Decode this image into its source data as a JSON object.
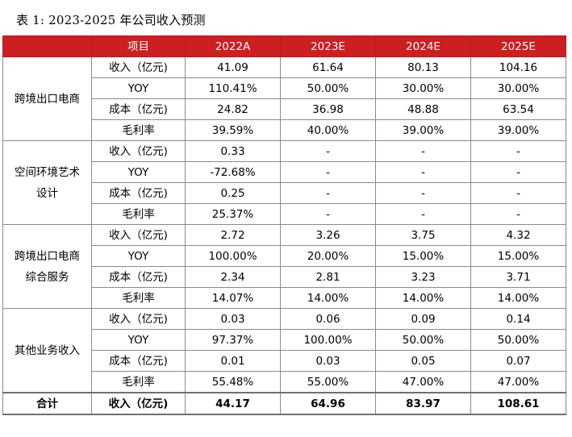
{
  "caption": "表 1: 2023-2025 年公司收入预测",
  "header": [
    "",
    "项目",
    "2022A",
    "2023E",
    "2024E",
    "2025E"
  ],
  "segments": [
    {
      "name_lines": [
        "跨境出口电商"
      ],
      "rows": [
        {
          "item": "收入（亿元)",
          "values": [
            "41.09",
            "61.64",
            "80.13",
            "104.16"
          ]
        },
        {
          "item": "YOY",
          "values": [
            "110.41%",
            "50.00%",
            "30.00%",
            "30.00%"
          ]
        },
        {
          "item": "成本（亿元)",
          "values": [
            "24.82",
            "36.98",
            "48.88",
            "63.54"
          ]
        },
        {
          "item": "毛利率",
          "values": [
            "39.59%",
            "40.00%",
            "39.00%",
            "39.00%"
          ]
        }
      ]
    },
    {
      "name_lines": [
        "空间环境艺术",
        "设计"
      ],
      "rows": [
        {
          "item": "收入（亿元)",
          "values": [
            "0.33",
            "-",
            "-",
            "-"
          ]
        },
        {
          "item": "YOY",
          "values": [
            "-72.68%",
            "-",
            "-",
            "-"
          ]
        },
        {
          "item": "成本（亿元)",
          "values": [
            "0.25",
            "-",
            "-",
            "-"
          ]
        },
        {
          "item": "毛利率",
          "values": [
            "25.37%",
            "-",
            "-",
            "-"
          ]
        }
      ]
    },
    {
      "name_lines": [
        "跨境出口电商",
        "综合服务"
      ],
      "rows": [
        {
          "item": "收入（亿元)",
          "values": [
            "2.72",
            "3.26",
            "3.75",
            "4.32"
          ]
        },
        {
          "item": "YOY",
          "values": [
            "100.00%",
            "20.00%",
            "15.00%",
            "15.00%"
          ]
        },
        {
          "item": "成本（亿元)",
          "values": [
            "2.34",
            "2.81",
            "3.23",
            "3.71"
          ]
        },
        {
          "item": "毛利率",
          "values": [
            "14.07%",
            "14.00%",
            "14.00%",
            "14.00%"
          ]
        }
      ]
    },
    {
      "name_lines": [
        "其他业务收入"
      ],
      "rows": [
        {
          "item": "收入（亿元)",
          "values": [
            "0.03",
            "0.06",
            "0.09",
            "0.14"
          ]
        },
        {
          "item": "YOY",
          "values": [
            "97.37%",
            "100.00%",
            "50.00%",
            "50.00%"
          ]
        },
        {
          "item": "成本（亿元)",
          "values": [
            "0.01",
            "0.03",
            "0.05",
            "0.07"
          ]
        },
        {
          "item": "毛利率",
          "values": [
            "55.48%",
            "55.00%",
            "47.00%",
            "47.00%"
          ]
        }
      ]
    }
  ],
  "total": {
    "label": "合计",
    "item": "收入（亿元)",
    "values": [
      "44.17",
      "64.96",
      "83.97",
      "108.61"
    ]
  },
  "colors": {
    "header_bg": "#cc1f22",
    "header_text": "#ffffff"
  }
}
